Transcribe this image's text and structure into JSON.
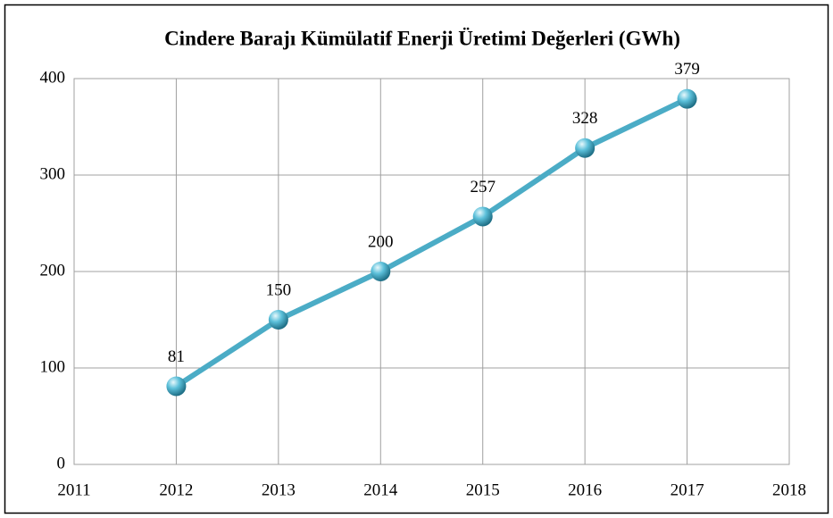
{
  "chart_data": {
    "type": "line",
    "title": "Cindere Barajı Kümülatif Enerji Üretimi Değerleri (GWh)",
    "x": [
      2012,
      2013,
      2014,
      2015,
      2016,
      2017
    ],
    "series": [
      {
        "color": "#4bacc6",
        "values": [
          81,
          150,
          200,
          257,
          328,
          379
        ]
      }
    ],
    "xlim": [
      2011,
      2018
    ],
    "xticks": [
      2011,
      2012,
      2013,
      2014,
      2015,
      2016,
      2017,
      2018
    ],
    "ylim": [
      0,
      400
    ],
    "yticks": [
      0,
      100,
      200,
      300,
      400
    ],
    "grid": true
  }
}
